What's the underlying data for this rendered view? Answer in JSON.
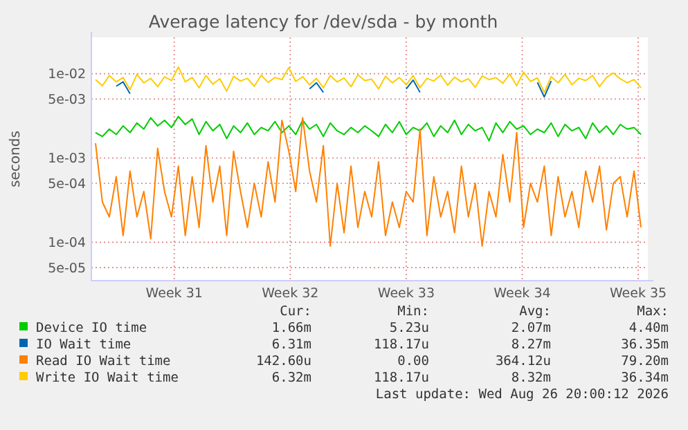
{
  "chart_data": {
    "type": "line",
    "title": "Average latency for /dev/sda - by month",
    "ylabel": "seconds",
    "log": "y",
    "grid": true,
    "legend": "bottom",
    "line_style": "solid",
    "marker": "none",
    "x": [
      "2026-07-22T06:00",
      "2026-07-22T16:00",
      "2026-07-23T02:00",
      "2026-07-23T12:00",
      "2026-07-23T22:00",
      "2026-07-24T08:00",
      "2026-07-24T18:00",
      "2026-07-25T04:00",
      "2026-07-25T14:00",
      "2026-07-26T00:00",
      "2026-07-26T10:00",
      "2026-07-26T20:00",
      "2026-07-27T06:00",
      "2026-07-27T16:00",
      "2026-07-28T02:00",
      "2026-07-28T12:00",
      "2026-07-28T22:00",
      "2026-07-29T08:00",
      "2026-07-29T18:00",
      "2026-07-30T04:00",
      "2026-07-30T14:00",
      "2026-07-31T00:00",
      "2026-07-31T10:00",
      "2026-07-31T20:00",
      "2026-08-01T06:00",
      "2026-08-01T16:00",
      "2026-08-02T02:00",
      "2026-08-02T12:00",
      "2026-08-02T22:00",
      "2026-08-03T08:00",
      "2026-08-03T18:00",
      "2026-08-04T04:00",
      "2026-08-04T14:00",
      "2026-08-05T00:00",
      "2026-08-05T10:00",
      "2026-08-05T20:00",
      "2026-08-06T06:00",
      "2026-08-06T16:00",
      "2026-08-07T02:00",
      "2026-08-07T12:00",
      "2026-08-07T22:00",
      "2026-08-08T08:00",
      "2026-08-08T18:00",
      "2026-08-09T04:00",
      "2026-08-09T14:00",
      "2026-08-10T00:00",
      "2026-08-10T10:00",
      "2026-08-10T20:00",
      "2026-08-11T06:00",
      "2026-08-11T16:00",
      "2026-08-12T02:00",
      "2026-08-12T12:00",
      "2026-08-12T22:00",
      "2026-08-13T08:00",
      "2026-08-13T18:00",
      "2026-08-14T04:00",
      "2026-08-14T14:00",
      "2026-08-15T00:00",
      "2026-08-15T10:00",
      "2026-08-15T20:00",
      "2026-08-16T06:00",
      "2026-08-16T16:00",
      "2026-08-17T02:00",
      "2026-08-17T12:00",
      "2026-08-17T22:00",
      "2026-08-18T08:00",
      "2026-08-18T18:00",
      "2026-08-19T04:00",
      "2026-08-19T14:00",
      "2026-08-20T00:00",
      "2026-08-20T10:00",
      "2026-08-20T20:00",
      "2026-08-21T06:00",
      "2026-08-21T16:00",
      "2026-08-22T02:00",
      "2026-08-22T12:00",
      "2026-08-22T22:00",
      "2026-08-23T08:00",
      "2026-08-23T18:00",
      "2026-08-24T04:00"
    ],
    "xlim": [
      "2026-07-22T00:00",
      "2026-08-24T14:00"
    ],
    "xticks": [
      {
        "value": "2026-07-27T00:00",
        "label": "Week 31"
      },
      {
        "value": "2026-08-03T00:00",
        "label": "Week 32"
      },
      {
        "value": "2026-08-10T00:00",
        "label": "Week 33"
      },
      {
        "value": "2026-08-17T00:00",
        "label": "Week 34"
      },
      {
        "value": "2026-08-24T00:00",
        "label": "Week 35"
      }
    ],
    "ylim": [
      3.5e-05,
      0.027
    ],
    "yticks": [
      {
        "value": 5e-05,
        "label": "5e-05"
      },
      {
        "value": 0.0001,
        "label": "1e-04"
      },
      {
        "value": 0.0005,
        "label": "5e-04"
      },
      {
        "value": 0.001,
        "label": "1e-03"
      },
      {
        "value": 0.005,
        "label": "5e-03"
      },
      {
        "value": 0.01,
        "label": "1e-02"
      }
    ],
    "series": [
      {
        "name": "Device IO time",
        "color": "#00cc00",
        "values": [
          0.002,
          0.0018,
          0.0022,
          0.0019,
          0.0024,
          0.002,
          0.0026,
          0.0022,
          0.003,
          0.0024,
          0.0028,
          0.0023,
          0.0031,
          0.0025,
          0.0029,
          0.0019,
          0.0027,
          0.0021,
          0.0025,
          0.0017,
          0.0024,
          0.002,
          0.0026,
          0.0019,
          0.0023,
          0.0021,
          0.0027,
          0.002,
          0.0024,
          0.0019,
          0.0028,
          0.0022,
          0.0025,
          0.0018,
          0.0026,
          0.0021,
          0.0019,
          0.0023,
          0.002,
          0.0024,
          0.0021,
          0.0018,
          0.0025,
          0.002,
          0.0027,
          0.0019,
          0.0023,
          0.0021,
          0.0026,
          0.0018,
          0.0024,
          0.002,
          0.0028,
          0.0019,
          0.0025,
          0.0021,
          0.0023,
          0.0016,
          0.0026,
          0.002,
          0.0027,
          0.0022,
          0.0024,
          0.0019,
          0.0022,
          0.002,
          0.0026,
          0.0018,
          0.0025,
          0.0021,
          0.0023,
          0.0017,
          0.0026,
          0.002,
          0.0024,
          0.0019,
          0.0025,
          0.0022,
          0.0023,
          0.0019
        ]
      },
      {
        "name": "IO Wait time",
        "color": "#0066b3",
        "values": [
          null,
          null,
          null,
          0.0071,
          0.008,
          0.0058,
          null,
          null,
          null,
          null,
          null,
          null,
          null,
          null,
          null,
          null,
          null,
          null,
          null,
          null,
          null,
          null,
          null,
          null,
          null,
          null,
          null,
          null,
          null,
          null,
          null,
          0.0066,
          0.0078,
          0.006,
          null,
          null,
          null,
          null,
          null,
          null,
          null,
          null,
          null,
          null,
          null,
          0.0066,
          0.0084,
          0.006,
          null,
          null,
          null,
          null,
          null,
          null,
          null,
          null,
          null,
          null,
          null,
          null,
          null,
          null,
          null,
          null,
          0.0079,
          0.0053,
          0.0082,
          null,
          null,
          null,
          null,
          null,
          null,
          null,
          null,
          null,
          null,
          null,
          null,
          null
        ]
      },
      {
        "name": "Read IO Wait time",
        "color": "#ff8000",
        "values": [
          0.0015,
          0.0003,
          0.0002,
          0.0006,
          0.00012,
          0.0007,
          0.0002,
          0.0004,
          0.00011,
          0.0013,
          0.0004,
          0.0002,
          0.0008,
          0.00012,
          0.0006,
          0.00015,
          0.0014,
          0.0003,
          0.0008,
          0.00012,
          0.0012,
          0.0004,
          0.00015,
          0.0005,
          0.0002,
          0.0009,
          0.0003,
          0.0028,
          0.0012,
          0.0004,
          0.003,
          0.0007,
          0.0003,
          0.0014,
          9e-05,
          0.0005,
          0.00013,
          0.0008,
          0.00015,
          0.0004,
          0.0002,
          0.0009,
          0.00012,
          0.0003,
          0.00015,
          0.0004,
          0.0003,
          0.0022,
          0.00012,
          0.0006,
          0.0002,
          0.0004,
          0.00013,
          0.0008,
          0.0002,
          0.0005,
          9e-05,
          0.0004,
          0.0002,
          0.0011,
          0.0003,
          0.002,
          0.00015,
          0.0005,
          0.0003,
          0.0008,
          0.00012,
          0.0006,
          0.0002,
          0.0004,
          0.00015,
          0.0007,
          0.0003,
          0.0008,
          0.00014,
          0.0005,
          0.0006,
          0.0002,
          0.0007,
          0.00015
        ]
      },
      {
        "name": "Write IO Wait time",
        "color": "#ffcc00",
        "values": [
          0.0085,
          0.0072,
          0.0095,
          0.008,
          0.009,
          0.0065,
          0.0098,
          0.0078,
          0.0088,
          0.007,
          0.0092,
          0.0083,
          0.012,
          0.008,
          0.009,
          0.0068,
          0.0095,
          0.0075,
          0.0087,
          0.0062,
          0.0093,
          0.0082,
          0.0088,
          0.0071,
          0.0096,
          0.0079,
          0.009,
          0.0085,
          0.0118,
          0.0081,
          0.0092,
          0.0074,
          0.0088,
          0.0068,
          0.0095,
          0.008,
          0.0089,
          0.007,
          0.0097,
          0.0083,
          0.0086,
          0.0066,
          0.0093,
          0.0078,
          0.009,
          0.0074,
          0.0095,
          0.0068,
          0.0088,
          0.0082,
          0.0096,
          0.0073,
          0.0091,
          0.008,
          0.0087,
          0.0069,
          0.0094,
          0.0085,
          0.009,
          0.0077,
          0.0099,
          0.0072,
          0.0104,
          0.0081,
          0.0089,
          0.006,
          0.0092,
          0.0078,
          0.0098,
          0.0074,
          0.0088,
          0.0083,
          0.0095,
          0.007,
          0.009,
          0.0102,
          0.0087,
          0.0078,
          0.0085,
          0.0068
        ]
      }
    ],
    "annotations": [
      "Cur:",
      "Min:",
      "Avg:",
      "Max:",
      "1.66m",
      "5.23u",
      "2.07m",
      "4.40m",
      "6.31m",
      "118.17u",
      "8.27m",
      "36.35m",
      "142.60u",
      "0.00",
      "364.12u",
      "79.20m",
      "6.32m",
      "118.17u",
      "8.32m",
      "36.34m",
      "Last update: Wed Aug 26 20:00:12 2026"
    ]
  }
}
